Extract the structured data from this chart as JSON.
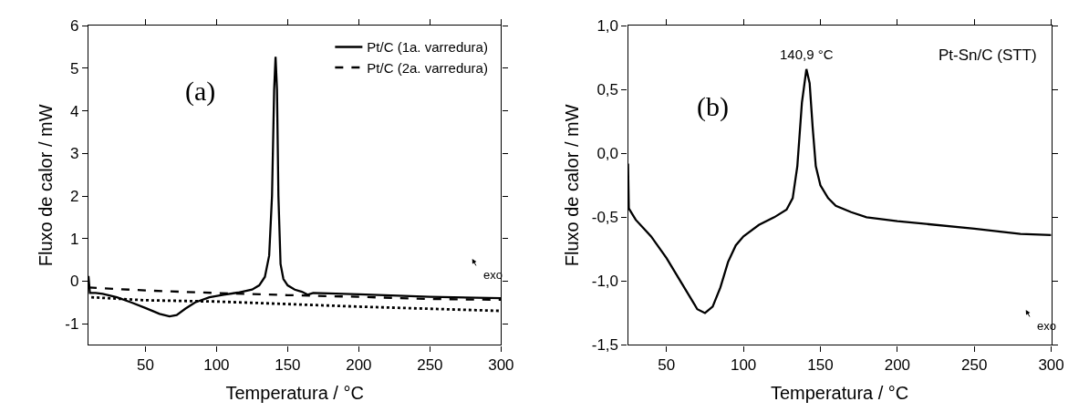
{
  "chart_data": [
    {
      "type": "line",
      "xlabel": "Temperatura / °C",
      "ylabel": "Fluxo de calor / mW",
      "xlim": [
        10,
        300
      ],
      "ylim": [
        -1.5,
        6
      ],
      "xticks": [
        50,
        100,
        150,
        200,
        250,
        300
      ],
      "yticks": [
        -1,
        0,
        1,
        2,
        3,
        4,
        5,
        6
      ],
      "legend": "top right",
      "marker": "none",
      "annotations": [
        "(a)",
        "exo"
      ],
      "series": [
        {
          "name": "Pt/C (1a. varredura)",
          "color": "#000000",
          "line_style": "solid",
          "x": [
            10,
            11,
            15,
            20,
            30,
            40,
            50,
            60,
            67,
            72,
            78,
            85,
            95,
            105,
            115,
            125,
            130,
            134,
            137,
            139,
            140.5,
            141.5,
            142.5,
            143.5,
            145,
            147,
            150,
            155,
            160,
            164,
            166,
            168,
            200,
            250,
            300
          ],
          "values": [
            0.12,
            -0.28,
            -0.28,
            -0.3,
            -0.38,
            -0.5,
            -0.63,
            -0.77,
            -0.83,
            -0.8,
            -0.65,
            -0.5,
            -0.38,
            -0.32,
            -0.27,
            -0.2,
            -0.1,
            0.1,
            0.6,
            2.0,
            4.5,
            5.27,
            4.5,
            2.0,
            0.4,
            0.05,
            -0.1,
            -0.2,
            -0.25,
            -0.32,
            -0.3,
            -0.28,
            -0.31,
            -0.37,
            -0.4
          ]
        },
        {
          "name": "Pt/C (2a. varredura)",
          "color": "#000000",
          "line_style": "dashed",
          "x": [
            10,
            50,
            100,
            150,
            200,
            250,
            300
          ],
          "values": [
            -0.15,
            -0.22,
            -0.28,
            -0.33,
            -0.37,
            -0.42,
            -0.44
          ]
        },
        {
          "color": "#000000",
          "line_style": "dotted",
          "x": [
            12,
            50,
            100,
            150,
            200,
            250,
            300
          ],
          "values": [
            -0.38,
            -0.45,
            -0.48,
            -0.54,
            -0.6,
            -0.65,
            -0.7
          ]
        }
      ]
    },
    {
      "type": "line",
      "xlabel": "Temperatura / °C",
      "ylabel": "Fluxo de calor / mW",
      "xlim": [
        25,
        300
      ],
      "ylim": [
        -1.5,
        1.0
      ],
      "xticks": [
        50,
        100,
        150,
        200,
        250,
        300
      ],
      "yticks": [
        {
          "value": -1.5,
          "label": "-1,5"
        },
        {
          "value": -1.0,
          "label": "-1,0"
        },
        {
          "value": -0.5,
          "label": "-0,5"
        },
        {
          "value": 0.0,
          "label": "0,0"
        },
        {
          "value": 0.5,
          "label": "0,5"
        },
        {
          "value": 1.0,
          "label": "1,0"
        }
      ],
      "legend": false,
      "marker": "none",
      "annotations": [
        "Pt-Sn/C (STT)",
        "(b)",
        {
          "text": "140,9 °C",
          "x": 140.9,
          "y": 0.66
        },
        "exo"
      ],
      "series": [
        {
          "color": "#000000",
          "line_style": "solid",
          "x": [
            25,
            25.5,
            30,
            40,
            50,
            60,
            70,
            75,
            80,
            85,
            90,
            95,
            100,
            110,
            120,
            128,
            132,
            135,
            138,
            140.9,
            143,
            145,
            147,
            150,
            155,
            160,
            170,
            180,
            200,
            250,
            280,
            300
          ],
          "values": [
            -0.08,
            -0.43,
            -0.52,
            -0.65,
            -0.82,
            -1.02,
            -1.22,
            -1.25,
            -1.2,
            -1.05,
            -0.85,
            -0.72,
            -0.65,
            -0.56,
            -0.5,
            -0.44,
            -0.35,
            -0.1,
            0.4,
            0.66,
            0.55,
            0.2,
            -0.1,
            -0.25,
            -0.35,
            -0.41,
            -0.46,
            -0.5,
            -0.53,
            -0.59,
            -0.63,
            -0.64
          ]
        }
      ]
    }
  ]
}
